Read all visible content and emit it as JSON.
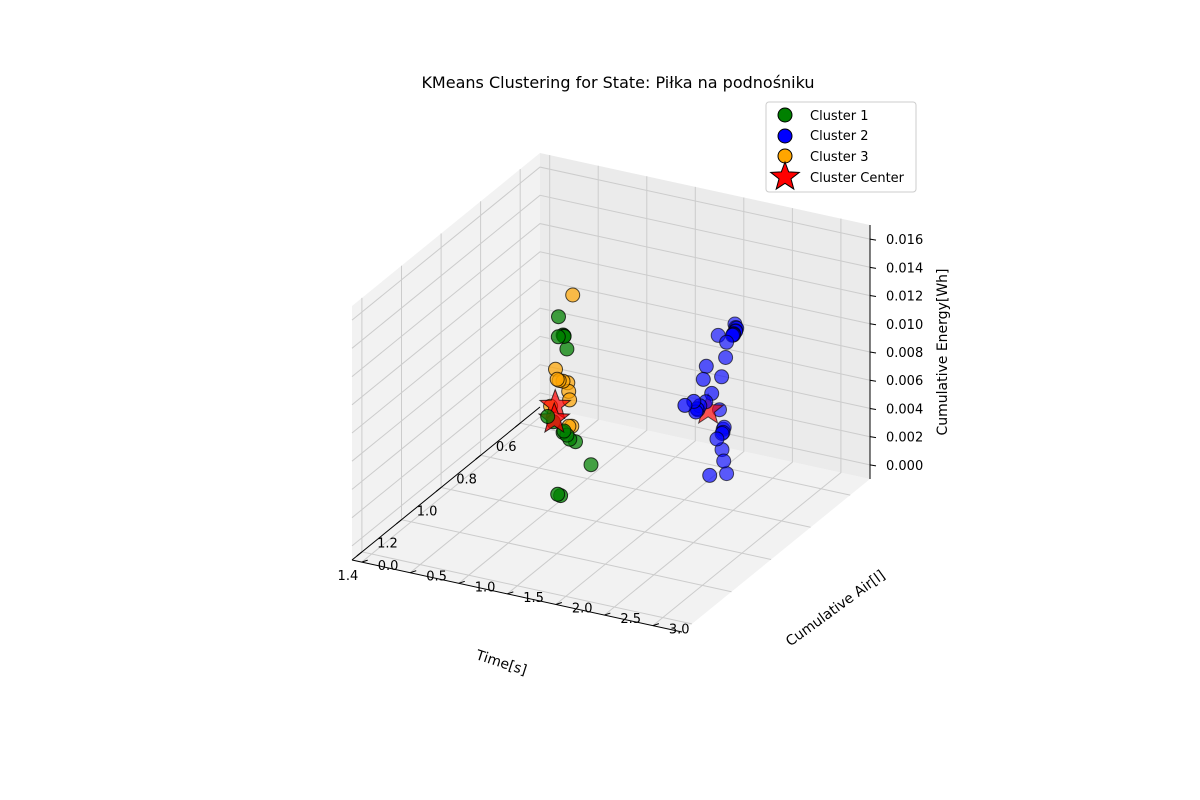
{
  "chart_data": {
    "type": "scatter",
    "projection": "3d",
    "title": "KMeans Clustering for State: Piłka na podnośniku",
    "xlabel": "Time[s]",
    "ylabel": "Cumulative Air[l]",
    "zlabel": "Cumulative Energy[Wh]",
    "xlim": [
      0.5,
      1.45
    ],
    "ylim": [
      -0.1,
      3.3
    ],
    "zlim": [
      -0.001,
      0.017
    ],
    "xticks": [
      "0.6",
      "0.8",
      "1.0",
      "1.2",
      "1.4"
    ],
    "yticks": [
      "0.0",
      "0.5",
      "1.0",
      "1.5",
      "2.0",
      "2.5",
      "3.0"
    ],
    "zticks": [
      "0.000",
      "0.002",
      "0.004",
      "0.006",
      "0.008",
      "0.010",
      "0.012",
      "0.014",
      "0.016"
    ],
    "grid": true,
    "legend_position": "top-right",
    "legend": [
      "Cluster 1",
      "Cluster 2",
      "Cluster 3",
      "Cluster Center"
    ],
    "series": [
      {
        "name": "Cluster 1",
        "color": "#008000",
        "points": [
          [
            0.75,
            0.6,
            0.0093
          ],
          [
            0.8,
            0.7,
            0.0086
          ],
          [
            0.8,
            0.75,
            0.0088
          ],
          [
            0.81,
            0.78,
            0.0089
          ],
          [
            0.82,
            0.8,
            0.009
          ],
          [
            0.83,
            0.85,
            0.0083
          ],
          [
            0.78,
            0.55,
            0.0025
          ],
          [
            0.8,
            0.65,
            0.0025
          ],
          [
            0.82,
            0.8,
            0.0023
          ],
          [
            0.83,
            0.85,
            0.0022
          ],
          [
            0.84,
            0.9,
            0.0021
          ],
          [
            0.86,
            1.0,
            0.0023
          ],
          [
            0.8,
            0.75,
            0.0019
          ],
          [
            0.88,
            1.2,
            0.0012
          ],
          [
            0.96,
            1.05,
            -0.0003
          ],
          [
            0.95,
            1.0,
            -0.0004
          ]
        ]
      },
      {
        "name": "Cluster 2",
        "color": "#0000ff",
        "points": [
          [
            1.06,
            3.05,
            0.016
          ],
          [
            1.09,
            3.12,
            0.0162
          ],
          [
            1.1,
            3.15,
            0.0163
          ],
          [
            1.12,
            3.18,
            0.0164
          ],
          [
            1.13,
            3.2,
            0.0165
          ],
          [
            1.15,
            3.22,
            0.0166
          ],
          [
            1.16,
            3.24,
            0.0167
          ],
          [
            1.17,
            3.26,
            0.0168
          ],
          [
            1.18,
            3.27,
            0.0169
          ],
          [
            1.12,
            3.0,
            0.0158
          ],
          [
            1.2,
            3.25,
            0.0166
          ],
          [
            1.22,
            3.28,
            0.0158
          ],
          [
            1.25,
            3.3,
            0.0148
          ],
          [
            1.3,
            3.3,
            0.0142
          ],
          [
            1.32,
            3.28,
            0.0138
          ],
          [
            1.36,
            3.3,
            0.014
          ],
          [
            1.4,
            3.32,
            0.0148
          ],
          [
            1.45,
            3.33,
            0.0151
          ],
          [
            1.36,
            3.26,
            0.0135
          ],
          [
            1.35,
            3.25,
            0.0136
          ],
          [
            1.34,
            3.24,
            0.0134
          ],
          [
            1.18,
            3.0,
            0.0143
          ],
          [
            1.22,
            3.05,
            0.0139
          ],
          [
            1.04,
            2.85,
            0.0094
          ],
          [
            1.07,
            2.95,
            0.0085
          ],
          [
            1.08,
            2.98,
            0.0088
          ],
          [
            1.12,
            3.05,
            0.009
          ],
          [
            1.14,
            3.08,
            0.0092
          ],
          [
            1.2,
            3.15,
            0.0096
          ],
          [
            1.19,
            3.2,
            0.008
          ],
          [
            1.15,
            3.1,
            0.0082
          ],
          [
            1.31,
            3.3,
            0.0085
          ],
          [
            1.2,
            3.25,
            0.0073
          ]
        ]
      },
      {
        "name": "Cluster 3",
        "color": "#ffa500",
        "points": [
          [
            0.58,
            0.4,
            0.0086
          ],
          [
            0.52,
            0.1,
            0.0022
          ],
          [
            0.56,
            0.2,
            0.0021
          ],
          [
            0.57,
            0.28,
            0.0022
          ],
          [
            0.58,
            0.35,
            0.0023
          ],
          [
            0.62,
            0.45,
            0.0017
          ],
          [
            0.6,
            0.4,
            0.002
          ],
          [
            0.55,
            0.2,
            0.0019
          ],
          [
            0.52,
            0.05,
            -0.0005
          ],
          [
            0.56,
            0.35,
            -0.001
          ],
          [
            0.55,
            0.3,
            -0.0012
          ]
        ]
      }
    ],
    "cluster_centers": [
      {
        "name": "Cluster Center",
        "color": "#ff0000",
        "point": [
          0.82,
          0.7,
          0.003
        ]
      },
      {
        "name": "Cluster Center",
        "color": "#ff0000",
        "point": [
          1.22,
          3.1,
          0.0118
        ]
      },
      {
        "name": "Cluster Center",
        "color": "#ff0000",
        "point": [
          0.58,
          0.22,
          0.0005
        ]
      }
    ]
  }
}
